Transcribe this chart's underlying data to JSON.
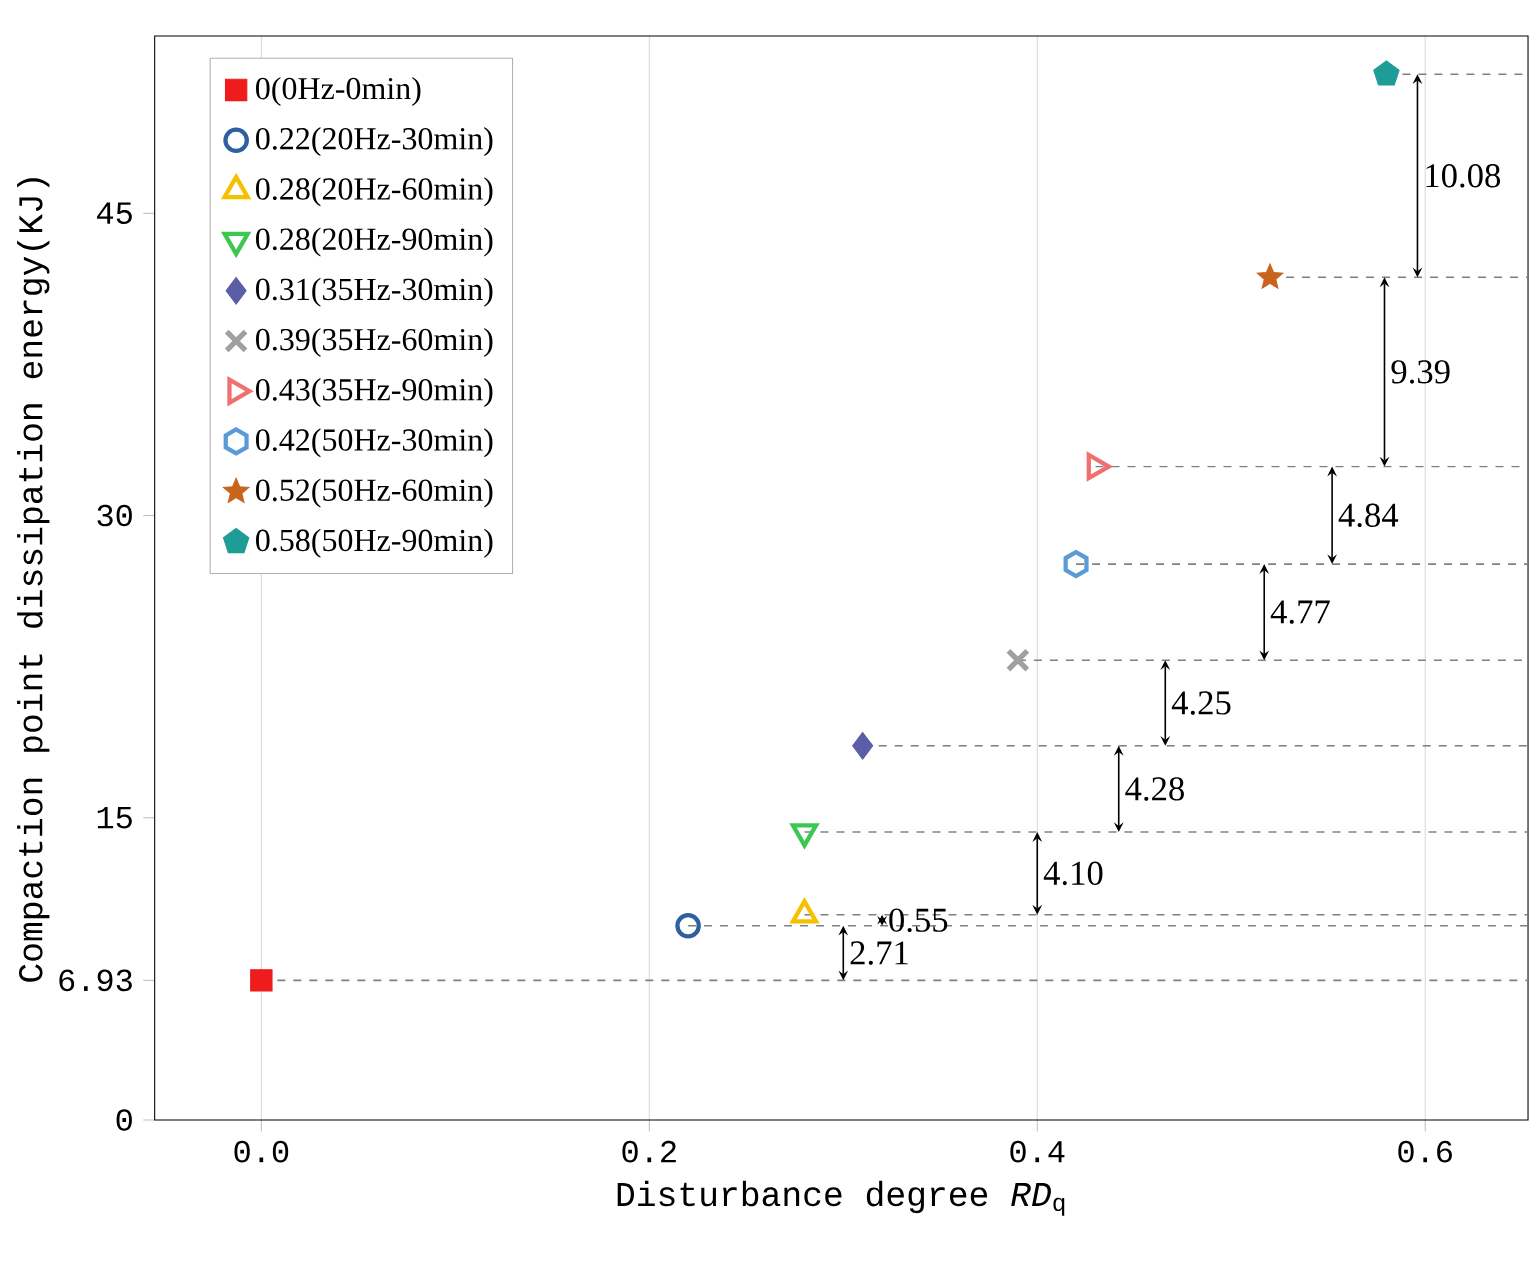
{
  "chart_data": {
    "type": "scatter",
    "xlabel": "Disturbance degree *RD*$_{q}$",
    "ylabel": "Compaction point dissipation energy(KJ)",
    "xlim": [
      -0.055,
      0.653
    ],
    "ylim": [
      0,
      53.8
    ],
    "xticks": [
      {
        "value": 0,
        "label": "0.0"
      },
      0.2,
      0.4,
      0.6
    ],
    "yticks": [
      0,
      6.93,
      15,
      30,
      45
    ],
    "grid": "x",
    "legend": "top left",
    "series": [
      {
        "name": "0(0Hz-0min)",
        "color": "#ee1c1c",
        "marker": "square",
        "x": [
          0
        ],
        "values": [
          6.93
        ]
      },
      {
        "name": "0.22(20Hz-30min)",
        "color": "#2e5fa0",
        "marker": "circle",
        "x": [
          0.22
        ],
        "values": [
          9.64
        ]
      },
      {
        "name": "0.28(20Hz-60min)",
        "color": "#f5c000",
        "marker": "triangle",
        "x": [
          0.28
        ],
        "values": [
          10.19
        ]
      },
      {
        "name": "0.28(20Hz-90min)",
        "color": "#3cc850",
        "marker": "triangle-down",
        "x": [
          0.28
        ],
        "values": [
          14.29
        ]
      },
      {
        "name": "0.31(35Hz-30min)",
        "color": "#5b5ea6",
        "marker": "diamond",
        "x": [
          0.31
        ],
        "values": [
          18.57
        ]
      },
      {
        "name": "0.39(35Hz-60min)",
        "color": "#a0a0a0",
        "marker": "cross",
        "x": [
          0.39
        ],
        "values": [
          22.82
        ]
      },
      {
        "name": "0.43(35Hz-90min)",
        "color": "#f07070",
        "marker": "triangle-right",
        "x": [
          0.43
        ],
        "values": [
          32.43
        ]
      },
      {
        "name": "0.42(50Hz-30min)",
        "color": "#5a9bd5",
        "x": [
          0.42
        ],
        "values": [
          27.59
        ]
      },
      {
        "name": "0.52(50Hz-60min)",
        "color": "#c8641e",
        "marker": "star",
        "x": [
          0.52
        ],
        "values": [
          41.82
        ]
      },
      {
        "name": "0.58(50Hz-90min)",
        "color": "#1e9c96",
        "x": [
          0.58
        ],
        "values": [
          51.9
        ]
      }
    ],
    "ref_lines": [
      {
        "axis": "y",
        "value": 6.93,
        "color": "#808080",
        "line_style": "dashed"
      },
      {
        "axis": "y",
        "value": 9.64,
        "color": "#808080",
        "line_style": "dashed"
      },
      {
        "axis": "y",
        "value": 10.19,
        "color": "#808080",
        "line_style": "dashed"
      },
      {
        "axis": "y",
        "value": 14.29,
        "color": "#808080",
        "line_style": "dashed"
      },
      {
        "axis": "y",
        "value": 18.57,
        "color": "#808080",
        "line_style": "dashed"
      },
      {
        "axis": "y",
        "value": 22.82,
        "color": "#808080",
        "line_style": "dashed"
      },
      {
        "axis": "y",
        "value": 27.59,
        "color": "#808080",
        "line_style": "dashed"
      },
      {
        "axis": "y",
        "value": 32.43,
        "color": "#808080",
        "line_style": "dashed"
      },
      {
        "axis": "y",
        "value": 41.82,
        "color": "#808080",
        "line_style": "dashed"
      },
      {
        "axis": "y",
        "value": 51.9,
        "color": "#808080",
        "line_style": "dashed"
      }
    ],
    "annotations": [
      {
        "text": "2.71",
        "x": 0.3,
        "y": 9.64
      },
      {
        "text": "0.55",
        "x": 0.32,
        "y": 10.19
      },
      {
        "text": "4.10",
        "x": 0.4,
        "y": 14.29
      },
      {
        "text": "4.28",
        "x": 0.442,
        "y": 18.57
      },
      {
        "text": "4.25",
        "x": 0.466,
        "y": 22.82
      },
      {
        "text": "4.77",
        "x": 0.517,
        "y": 27.59
      },
      {
        "text": "4.84",
        "x": 0.552,
        "y": 32.43
      },
      {
        "text": "9.39",
        "x": 0.579,
        "y": 41.82
      },
      {
        "text": "10.08",
        "x": 0.596,
        "y": 51.9
      }
    ]
  }
}
